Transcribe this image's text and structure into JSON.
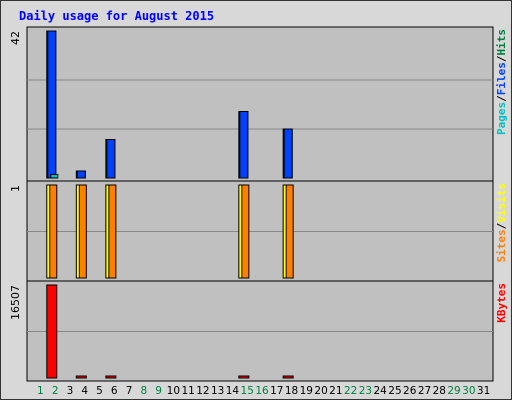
{
  "chart_data": {
    "type": "bar",
    "title": "Daily usage for August 2015",
    "days": [
      1,
      2,
      3,
      4,
      5,
      6,
      7,
      8,
      9,
      10,
      11,
      12,
      13,
      14,
      15,
      16,
      17,
      18,
      19,
      20,
      21,
      22,
      23,
      24,
      25,
      26,
      27,
      28,
      29,
      30,
      31
    ],
    "weekend_days": [
      1,
      2,
      8,
      9,
      15,
      16,
      22,
      23,
      29,
      30
    ],
    "panels": [
      {
        "name": "hits",
        "ymax_label": "42",
        "ylim": [
          0,
          42
        ],
        "legend": [
          "Pages",
          "/",
          "Files",
          "/",
          "Hits"
        ],
        "legend_colors": [
          "#00c0c0",
          "#000000",
          "#0040ff",
          "#000000",
          "#008040"
        ],
        "series": [
          {
            "name": "Hits",
            "color": "#008040",
            "values": [
              0,
              42,
              0,
              2,
              0,
              11,
              0,
              0,
              0,
              0,
              0,
              0,
              0,
              0,
              19,
              0,
              0,
              14,
              0,
              0,
              0,
              0,
              0,
              0,
              0,
              0,
              0,
              0,
              0,
              0,
              0
            ]
          },
          {
            "name": "Files",
            "color": "#0040ff",
            "values": [
              0,
              42,
              0,
              2,
              0,
              11,
              0,
              0,
              0,
              0,
              0,
              0,
              0,
              0,
              19,
              0,
              0,
              14,
              0,
              0,
              0,
              0,
              0,
              0,
              0,
              0,
              0,
              0,
              0,
              0,
              0
            ]
          },
          {
            "name": "Pages",
            "color": "#00c0c0",
            "values": [
              0,
              1,
              0,
              0,
              0,
              0,
              0,
              0,
              0,
              0,
              0,
              0,
              0,
              0,
              0,
              0,
              0,
              0,
              0,
              0,
              0,
              0,
              0,
              0,
              0,
              0,
              0,
              0,
              0,
              0,
              0
            ]
          }
        ]
      },
      {
        "name": "visits",
        "ymax_label": "1",
        "ylim": [
          0,
          1
        ],
        "legend": [
          "Sites",
          "/",
          "Visits"
        ],
        "legend_colors": [
          "#ff8000",
          "#000000",
          "#ffff00"
        ],
        "series": [
          {
            "name": "Visits",
            "color": "#ffff00",
            "values": [
              0,
              1,
              0,
              1,
              0,
              1,
              0,
              0,
              0,
              0,
              0,
              0,
              0,
              0,
              1,
              0,
              0,
              1,
              0,
              0,
              0,
              0,
              0,
              0,
              0,
              0,
              0,
              0,
              0,
              0,
              0
            ]
          },
          {
            "name": "Sites",
            "color": "#ff8000",
            "values": [
              0,
              1,
              0,
              1,
              0,
              1,
              0,
              0,
              0,
              0,
              0,
              0,
              0,
              0,
              1,
              0,
              0,
              1,
              0,
              0,
              0,
              0,
              0,
              0,
              0,
              0,
              0,
              0,
              0,
              0,
              0
            ]
          }
        ]
      },
      {
        "name": "kbytes",
        "ymax_label": "16507",
        "ylim": [
          0,
          16507
        ],
        "legend": [
          "KBytes"
        ],
        "legend_colors": [
          "#ff0000"
        ],
        "series": [
          {
            "name": "KBytes",
            "color": "#ff0000",
            "values": [
              0,
              16507,
              0,
              150,
              0,
              150,
              0,
              0,
              0,
              0,
              0,
              0,
              0,
              0,
              150,
              0,
              0,
              150,
              0,
              0,
              0,
              0,
              0,
              0,
              0,
              0,
              0,
              0,
              0,
              0,
              0
            ]
          }
        ]
      }
    ],
    "grid": true,
    "colors": {
      "background": "#d8d8d8",
      "plot": "#c0c0c0",
      "title": "#0000ff",
      "weekday": "#000000",
      "weekend": "#008040"
    }
  }
}
